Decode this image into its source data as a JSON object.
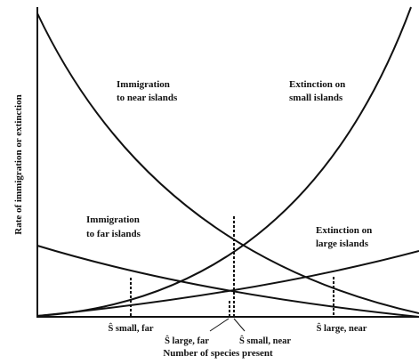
{
  "axes": {
    "y_label": "Rate of immigration or extinction",
    "x_label": "Number of species present"
  },
  "curves": [
    {
      "label_lines": [
        "Immigration",
        "to near islands"
      ]
    },
    {
      "label_lines": [
        "Extinction on",
        "small islands"
      ]
    },
    {
      "label_lines": [
        "Immigration",
        "to far islands"
      ]
    },
    {
      "label_lines": [
        "Extinction on",
        "large islands"
      ]
    }
  ],
  "equilibria": [
    "Ŝ small, far",
    "Ŝ large, far",
    "Ŝ small, near",
    "Ŝ large, near"
  ]
}
